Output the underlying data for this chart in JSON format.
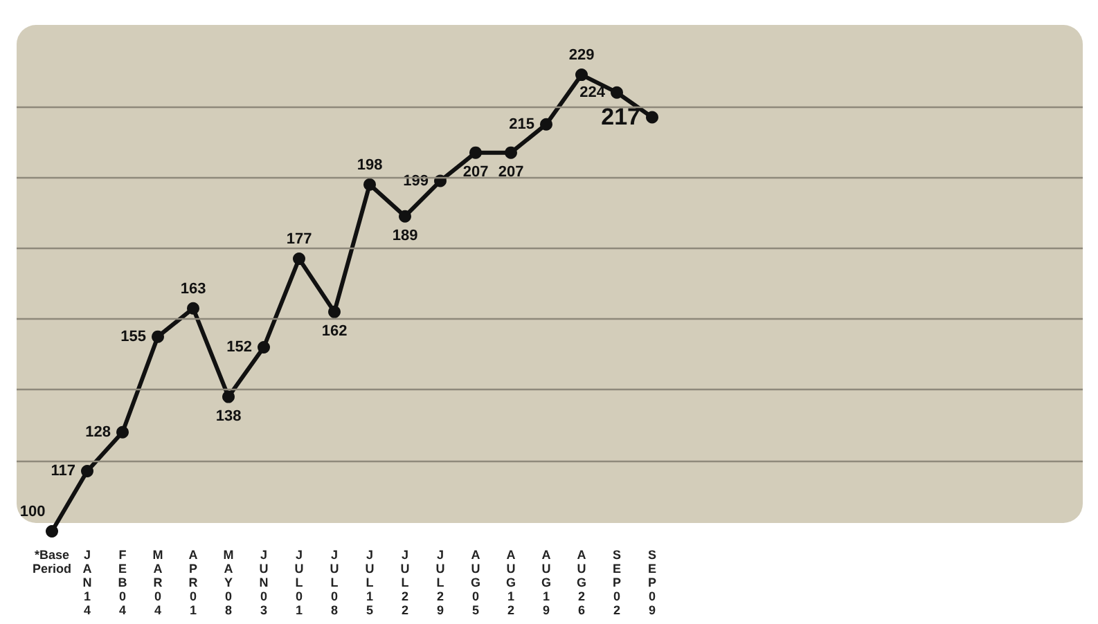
{
  "chart_data": {
    "type": "line",
    "categories": [
      "*Base Period",
      "JAN14",
      "FEB04",
      "MAR04",
      "APR01",
      "MAY08",
      "JUN03",
      "JUL01",
      "JUL08",
      "JUL15",
      "JUL22",
      "JUL29",
      "AUG05",
      "AUG12",
      "AUG19",
      "AUG26",
      "SEP02",
      "SEP09"
    ],
    "values": [
      100,
      117,
      128,
      155,
      163,
      138,
      152,
      177,
      162,
      198,
      189,
      199,
      207,
      207,
      215,
      229,
      224,
      217
    ],
    "color": "#111111",
    "marker": "circle",
    "data_labels": true,
    "yticks": [
      {
        "value": 120,
        "label": null
      },
      {
        "value": 140,
        "label": null
      },
      {
        "value": 160,
        "label": null
      },
      {
        "value": 180,
        "label": null
      },
      {
        "value": 200,
        "label": null
      },
      {
        "value": 220,
        "label": null
      }
    ],
    "grid": "y",
    "tick_labels": "x"
  }
}
